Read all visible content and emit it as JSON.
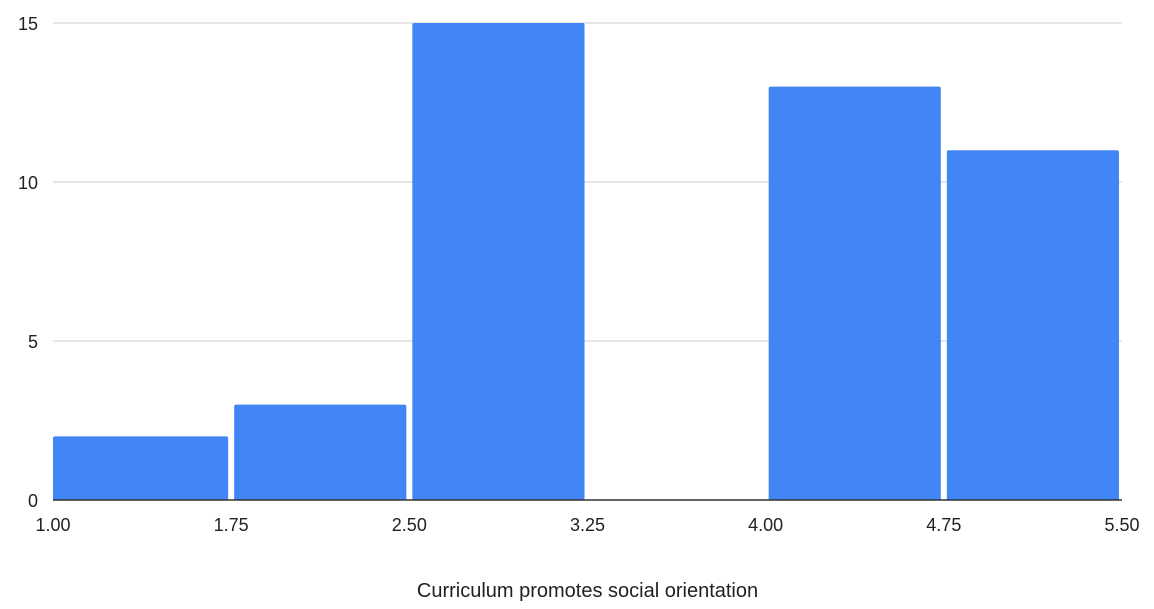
{
  "chart_data": {
    "type": "bar",
    "subtype": "histogram",
    "xlabel": "Curriculum promotes social orientation",
    "ylabel": "",
    "bins": [
      {
        "start": 1.0,
        "end": 1.75,
        "value": 2
      },
      {
        "start": 1.75,
        "end": 2.5,
        "value": 3
      },
      {
        "start": 2.5,
        "end": 3.25,
        "value": 15
      },
      {
        "start": 3.25,
        "end": 4.0,
        "value": 0
      },
      {
        "start": 4.0,
        "end": 4.75,
        "value": 13
      },
      {
        "start": 4.75,
        "end": 5.5,
        "value": 11
      }
    ],
    "x_ticks": [
      "1.00",
      "1.75",
      "2.50",
      "3.25",
      "4.00",
      "4.75",
      "5.50"
    ],
    "y_ticks": [
      "0",
      "5",
      "10",
      "15"
    ],
    "xlim": [
      1.0,
      5.5
    ],
    "ylim": [
      0,
      15
    ],
    "grid": true,
    "bar_color": "#4285f4"
  }
}
